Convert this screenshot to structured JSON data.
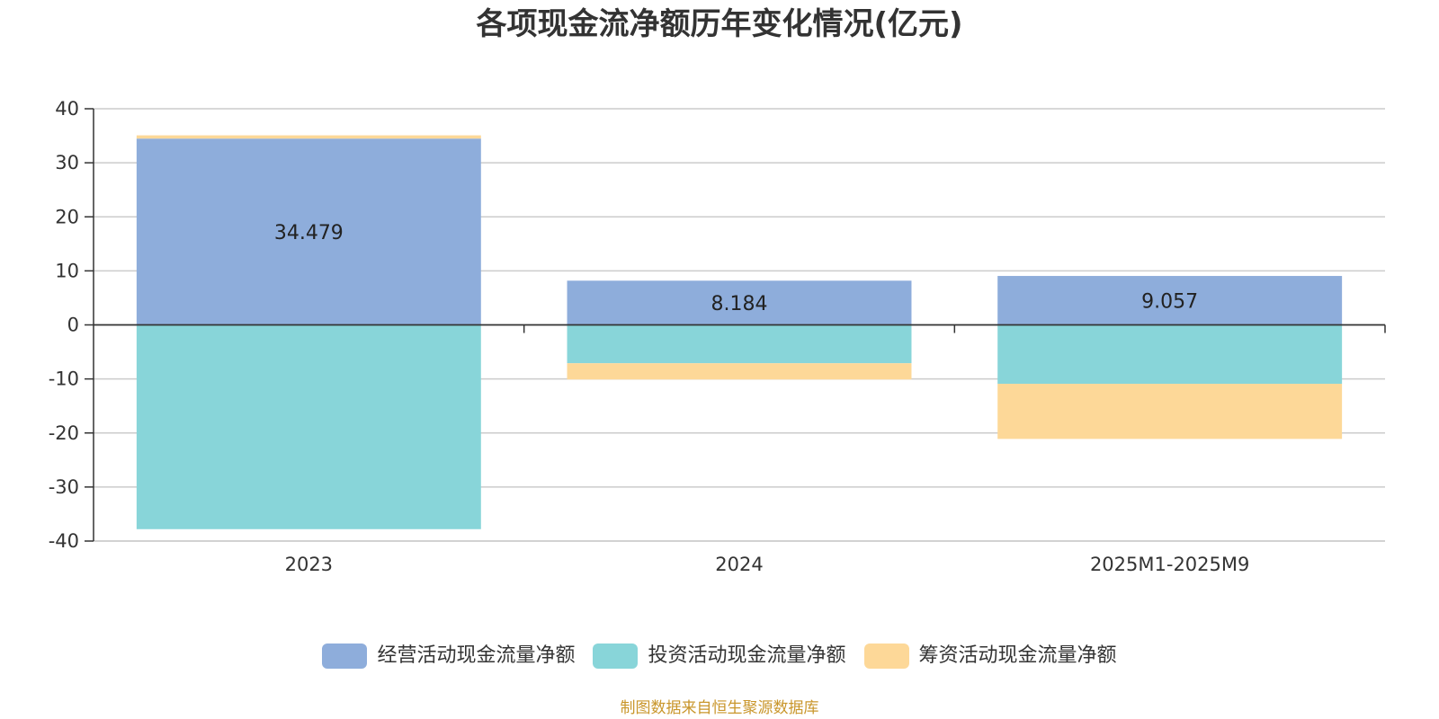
{
  "chart_data": {
    "type": "bar",
    "stacked": true,
    "title": "各项现金流净额历年变化情况(亿元)",
    "categories": [
      "2023",
      "2024",
      "2025M1-2025M9"
    ],
    "series": [
      {
        "name": "经营活动现金流量净额",
        "values": [
          34.479,
          8.184,
          9.057
        ],
        "color": "#8eaddb",
        "show_labels": true
      },
      {
        "name": "投资活动现金流量净额",
        "values": [
          -37.8,
          -7.1,
          -10.9
        ],
        "color": "#88d5d9",
        "show_labels": false
      },
      {
        "name": "筹资活动现金流量净额",
        "values": [
          0.6,
          -3.0,
          -10.2
        ],
        "color": "#fdd898",
        "show_labels": false
      }
    ],
    "ylim": [
      -40,
      40
    ],
    "yticks": [
      40,
      30,
      20,
      10,
      0,
      -10,
      -20,
      -30,
      -40
    ],
    "grid": true,
    "legend_position": "bottom",
    "source": "制图数据来自恒生聚源数据库"
  }
}
